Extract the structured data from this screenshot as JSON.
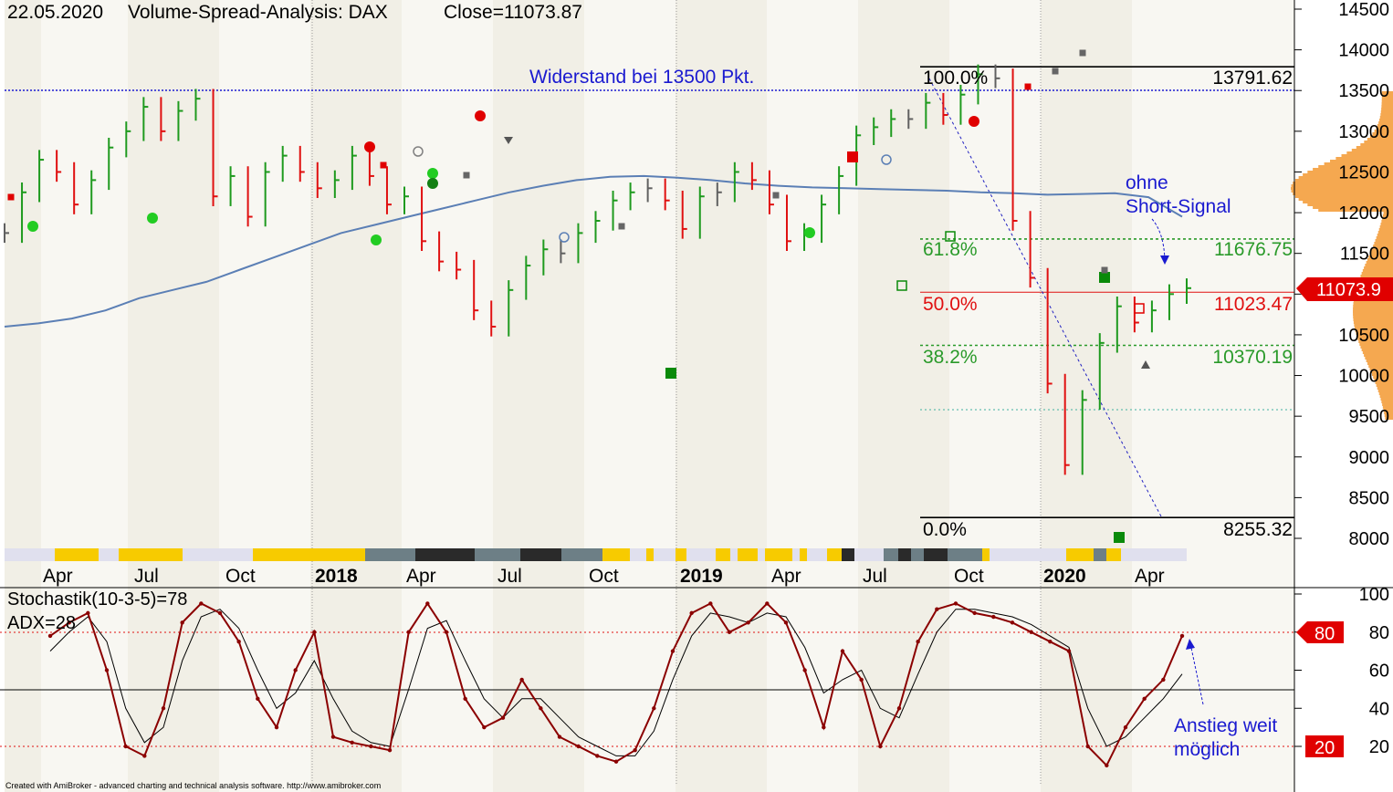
{
  "header": {
    "date": "22.05.2020",
    "title": "Volume-Spread-Analysis: DAX",
    "close": "Close=11073.87"
  },
  "annotations": {
    "resistance": "Widerstand bei 13500 Pkt.",
    "no_short_1": "ohne",
    "no_short_2": "Short-Signal",
    "stoch_note_1": "Anstieg weit",
    "stoch_note_2": "möglich",
    "footer": "Created with AmiBroker - advanced charting and technical analysis software. http://www.amibroker.com"
  },
  "fib": {
    "p100": "100.0%",
    "v100": "13791.62",
    "p618": "61.8%",
    "v618": "11676.75",
    "p50": "50.0%",
    "v50": "11023.47",
    "p382": "38.2%",
    "v382": "10370.19",
    "p0": "0.0%",
    "v0": "8255.32"
  },
  "price_badge": "11073.9",
  "stoch": {
    "label1": "Stochastik(10-3-5)=78",
    "label2": "ADX=28",
    "badge_high": "80",
    "badge_low": "20",
    "ticks": [
      "100",
      "80",
      "60",
      "40",
      "20"
    ]
  },
  "colors": {
    "up": "#1e9a1e",
    "down": "#e01010",
    "neutral": "#606060",
    "ma": "#5b7fb5",
    "stoch": "#8b0000",
    "volume_profile": "#f5a850",
    "badge": "#e00000"
  },
  "chart_data": [
    {
      "type": "line",
      "title": "Volume-Spread-Analysis: DAX",
      "y_ticks": [
        14500,
        14000,
        13500,
        13000,
        12500,
        12000,
        11500,
        11000,
        10500,
        10000,
        9500,
        9000,
        8500,
        8000
      ],
      "ylim": [
        7800,
        14600
      ],
      "x_ticks": [
        "Apr",
        "Jul",
        "Oct",
        "2018",
        "Apr",
        "Jul",
        "Oct",
        "2019",
        "Apr",
        "Jul",
        "Oct",
        "2020",
        "Apr"
      ],
      "series": [
        {
          "name": "Close=11073.87",
          "values": [
            11750,
            12250,
            12650,
            12500,
            12100,
            12400,
            12800,
            13000,
            13300,
            13000,
            13250,
            13400,
            12200,
            12450,
            11950,
            12500,
            12700,
            12500,
            12300,
            12400,
            12700,
            12450,
            12100,
            12200,
            11650,
            11400,
            11300,
            10800,
            10600,
            11050,
            11350,
            11550,
            11500,
            11750,
            11900,
            12150,
            12250,
            12300,
            12150,
            11800,
            12200,
            12250,
            12500,
            12400,
            12100,
            11650,
            11750,
            12100,
            12450,
            12950,
            13050,
            13150,
            13150,
            13350,
            13200,
            13450,
            13700,
            13650,
            11900,
            11200,
            9900,
            8900,
            9700,
            10400,
            10850,
            10650,
            10800,
            11000,
            11073
          ]
        },
        {
          "name": "",
          "values": [
            10600,
            10640,
            10700,
            10800,
            10950,
            11050,
            11150,
            11300,
            11450,
            11600,
            11750,
            11850,
            11950,
            12050,
            12150,
            12250,
            12330,
            12400,
            12440,
            12450,
            12430,
            12400,
            12360,
            12330,
            12310,
            12300,
            12290,
            12280,
            12270,
            12250,
            12240,
            12220,
            12230,
            12240,
            12190,
            11950
          ]
        }
      ],
      "fibonacci": [
        {
          "label": "100.0%",
          "value": 13791.62
        },
        {
          "label": "61.8%",
          "value": 11676.75
        },
        {
          "label": "50.0%",
          "value": 11023.47
        },
        {
          "label": "38.2%",
          "value": 10370.19
        },
        {
          "label": "0.0%",
          "value": 8255.32
        }
      ],
      "resistance": 13500
    },
    {
      "type": "line",
      "title": "Stochastik(10-3-5)=78",
      "y_ticks": [
        100,
        80,
        60,
        40,
        20
      ],
      "ylim": [
        0,
        100
      ],
      "reference_lines": [
        80,
        50,
        20
      ],
      "series": [
        {
          "name": "Stochastik(10-3-5)=78",
          "values": [
            78,
            85,
            90,
            60,
            20,
            15,
            40,
            85,
            95,
            90,
            75,
            45,
            30,
            60,
            80,
            25,
            22,
            20,
            18,
            80,
            95,
            80,
            45,
            30,
            35,
            55,
            40,
            25,
            20,
            15,
            12,
            18,
            40,
            70,
            90,
            95,
            80,
            85,
            95,
            85,
            60,
            30,
            70,
            55,
            20,
            40,
            75,
            92,
            95,
            90,
            88,
            85,
            80,
            75,
            70,
            20,
            10,
            30,
            45,
            55,
            78
          ]
        },
        {
          "name": "",
          "values": [
            70,
            80,
            88,
            75,
            40,
            22,
            30,
            65,
            88,
            92,
            82,
            60,
            40,
            48,
            65,
            45,
            28,
            22,
            20,
            50,
            82,
            86,
            65,
            45,
            35,
            45,
            45,
            35,
            25,
            20,
            15,
            15,
            28,
            55,
            78,
            90,
            88,
            85,
            90,
            88,
            72,
            48,
            55,
            60,
            40,
            35,
            58,
            80,
            92,
            92,
            90,
            88,
            84,
            78,
            72,
            40,
            20,
            25,
            35,
            45,
            58
          ]
        }
      ]
    }
  ]
}
